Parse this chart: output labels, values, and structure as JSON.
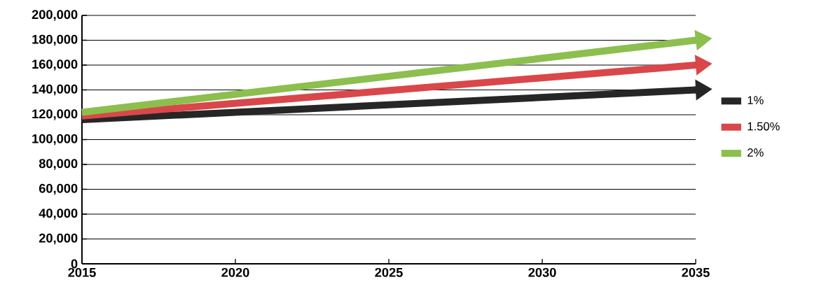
{
  "chart_data": {
    "type": "line",
    "x": [
      2015,
      2035
    ],
    "series": [
      {
        "name": "1%",
        "color": "#262626",
        "values": [
          116000,
          140000
        ]
      },
      {
        "name": "1.50%",
        "color": "#d9474a",
        "values": [
          119000,
          160000
        ]
      },
      {
        "name": "2%",
        "color": "#8cbf4e",
        "values": [
          122000,
          180000
        ]
      }
    ],
    "xlim": [
      2015,
      2035
    ],
    "xticks": [
      2015,
      2020,
      2025,
      2030,
      2035
    ],
    "ylim": [
      0,
      200000
    ],
    "yticks": [
      {
        "value": 0,
        "label": "0"
      },
      {
        "value": 20000,
        "label": "20,000"
      },
      {
        "value": 40000,
        "label": "40,000"
      },
      {
        "value": 60000,
        "label": "60,000"
      },
      {
        "value": 80000,
        "label": "80,000"
      },
      {
        "value": 100000,
        "label": "100,000"
      },
      {
        "value": 120000,
        "label": "120,000"
      },
      {
        "value": 140000,
        "label": "140,000"
      },
      {
        "value": 160000,
        "label": "160,000"
      },
      {
        "value": 180000,
        "label": "180,000"
      },
      {
        "value": 200000,
        "label": "200,000"
      }
    ],
    "grid": "y",
    "legend": "right"
  }
}
